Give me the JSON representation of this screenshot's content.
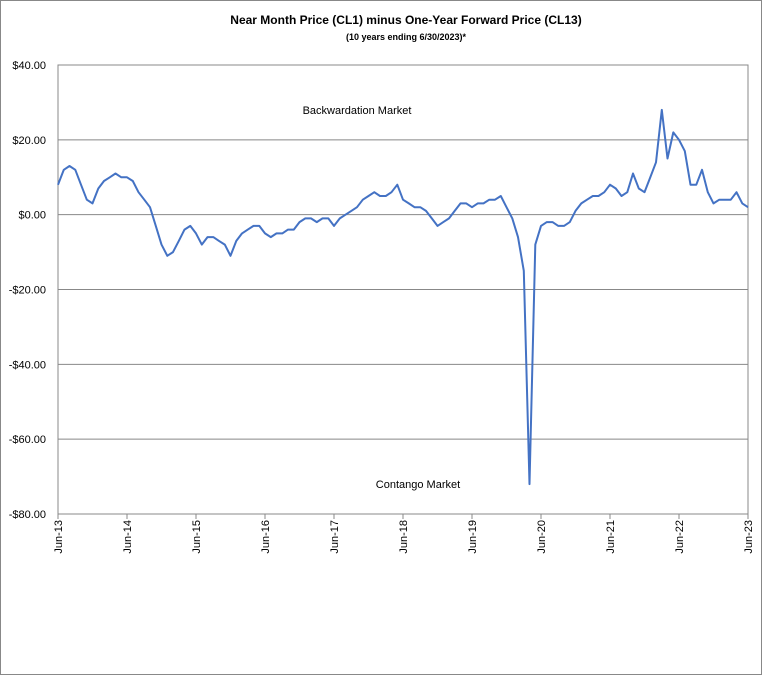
{
  "chart_data": {
    "type": "line",
    "title": "Near Month Price (CL1) minus One-Year Forward Price (CL13)",
    "subtitle": "(10 years ending  6/30/2023)*",
    "annotations": [
      "Backwardation Market",
      "Contango Market"
    ],
    "x": [
      "2013-06",
      "2013-07",
      "2013-08",
      "2013-09",
      "2013-10",
      "2013-11",
      "2013-12",
      "2014-01",
      "2014-02",
      "2014-03",
      "2014-04",
      "2014-05",
      "2014-06",
      "2014-07",
      "2014-08",
      "2014-09",
      "2014-10",
      "2014-11",
      "2014-12",
      "2015-01",
      "2015-02",
      "2015-03",
      "2015-04",
      "2015-05",
      "2015-06",
      "2015-07",
      "2015-08",
      "2015-09",
      "2015-10",
      "2015-11",
      "2015-12",
      "2016-01",
      "2016-02",
      "2016-03",
      "2016-04",
      "2016-05",
      "2016-06",
      "2016-07",
      "2016-08",
      "2016-09",
      "2016-10",
      "2016-11",
      "2016-12",
      "2017-01",
      "2017-02",
      "2017-03",
      "2017-04",
      "2017-05",
      "2017-06",
      "2017-07",
      "2017-08",
      "2017-09",
      "2017-10",
      "2017-11",
      "2017-12",
      "2018-01",
      "2018-02",
      "2018-03",
      "2018-04",
      "2018-05",
      "2018-06",
      "2018-07",
      "2018-08",
      "2018-09",
      "2018-10",
      "2018-11",
      "2018-12",
      "2019-01",
      "2019-02",
      "2019-03",
      "2019-04",
      "2019-05",
      "2019-06",
      "2019-07",
      "2019-08",
      "2019-09",
      "2019-10",
      "2019-11",
      "2019-12",
      "2020-01",
      "2020-02",
      "2020-03",
      "2020-04",
      "2020-05",
      "2020-06",
      "2020-07",
      "2020-08",
      "2020-09",
      "2020-10",
      "2020-11",
      "2020-12",
      "2021-01",
      "2021-02",
      "2021-03",
      "2021-04",
      "2021-05",
      "2021-06",
      "2021-07",
      "2021-08",
      "2021-09",
      "2021-10",
      "2021-11",
      "2021-12",
      "2022-01",
      "2022-02",
      "2022-03",
      "2022-04",
      "2022-05",
      "2022-06",
      "2022-07",
      "2022-08",
      "2022-09",
      "2022-10",
      "2022-11",
      "2022-12",
      "2023-01",
      "2023-02",
      "2023-03",
      "2023-04",
      "2023-05",
      "2023-06"
    ],
    "series": [
      {
        "name": "CL1 minus CL13",
        "color": "#4472c4",
        "values": [
          8,
          12,
          13,
          12,
          8,
          4,
          3,
          7,
          9,
          10,
          11,
          10,
          10,
          9,
          6,
          4,
          2,
          -3,
          -8,
          -11,
          -10,
          -7,
          -4,
          -3,
          -5,
          -8,
          -6,
          -6,
          -7,
          -8,
          -11,
          -7,
          -5,
          -4,
          -3,
          -3,
          -5,
          -6,
          -5,
          -5,
          -4,
          -4,
          -2,
          -1,
          -1,
          -2,
          -1,
          -1,
          -3,
          -1,
          0,
          1,
          2,
          4,
          5,
          6,
          5,
          5,
          6,
          8,
          4,
          3,
          2,
          2,
          1,
          -1,
          -3,
          -2,
          -1,
          1,
          3,
          3,
          2,
          3,
          3,
          4,
          4,
          5,
          2,
          -1,
          -6,
          -15,
          -72,
          -8,
          -3,
          -2,
          -2,
          -3,
          -3,
          -2,
          1,
          3,
          4,
          5,
          5,
          6,
          8,
          7,
          5,
          6,
          11,
          7,
          6,
          10,
          14,
          28,
          15,
          22,
          20,
          17,
          8,
          8,
          12,
          6,
          3,
          4,
          4,
          4,
          6,
          3,
          2
        ]
      }
    ],
    "xlim": [
      "2013-06",
      "2023-06"
    ],
    "xticks": [
      {
        "value": "2013-06",
        "label": "Jun-13"
      },
      {
        "value": "2014-06",
        "label": "Jun-14"
      },
      {
        "value": "2015-06",
        "label": "Jun-15"
      },
      {
        "value": "2016-06",
        "label": "Jun-16"
      },
      {
        "value": "2017-06",
        "label": "Jun-17"
      },
      {
        "value": "2018-06",
        "label": "Jun-18"
      },
      {
        "value": "2019-06",
        "label": "Jun-19"
      },
      {
        "value": "2020-06",
        "label": "Jun-20"
      },
      {
        "value": "2021-06",
        "label": "Jun-21"
      },
      {
        "value": "2022-06",
        "label": "Jun-22"
      },
      {
        "value": "2023-06",
        "label": "Jun-23"
      }
    ],
    "ylim": [
      -80,
      40
    ],
    "yticks": [
      {
        "value": -80,
        "label": "-$80.00"
      },
      {
        "value": -60,
        "label": "-$60.00"
      },
      {
        "value": -40,
        "label": "-$40.00"
      },
      {
        "value": -20,
        "label": "-$20.00"
      },
      {
        "value": 0,
        "label": "$0.00"
      },
      {
        "value": 20,
        "label": "$20.00"
      },
      {
        "value": 40,
        "label": "$40.00"
      }
    ],
    "grid": true
  }
}
